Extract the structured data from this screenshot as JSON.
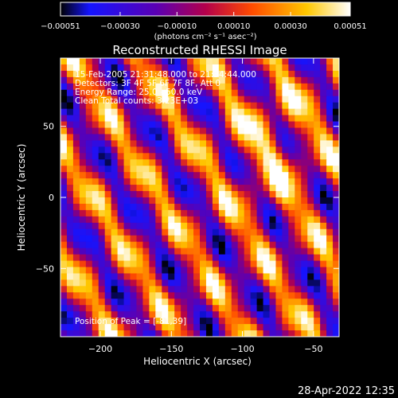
{
  "chart_data": {
    "type": "heatmap",
    "title": "Reconstructed RHESSI Image",
    "xlabel": "Heliocentric X (arcsec)",
    "ylabel": "Heliocentric Y (arcsec)",
    "xlim": [
      -228,
      -32
    ],
    "ylim": [
      -98,
      98
    ],
    "xticks": [
      -200,
      -150,
      -100,
      -50
    ],
    "yticks": [
      50,
      0,
      -50
    ],
    "xtick_labels": [
      "−200",
      "−150",
      "−100",
      "−50"
    ],
    "ytick_labels": [
      "50",
      "0",
      "−50"
    ],
    "colorbar": {
      "min": -0.00051,
      "max": 0.00051,
      "ticks": [
        -0.00051,
        -0.0003,
        -0.0001,
        0.0001,
        0.0003,
        0.00051
      ],
      "tick_labels": [
        "−0.00051",
        "−0.00030",
        "−0.00010",
        "0.00010",
        "0.00030",
        "0.00051"
      ],
      "unit_label": "(photons cm⁻² s⁻¹ asec⁻²)",
      "colors": [
        "#000000",
        "#1414ff",
        "#5a00b4",
        "#b4004b",
        "#ff4b00",
        "#ffc800",
        "#ffffff"
      ]
    },
    "annotations": [
      "15-Feb-2005 21:31:48.000 to 21:34:44.000",
      "Detectors: 3F 4F 5F 6F 7F 8F, Att 0",
      "Energy Range: 25.0 - 50.0 keV",
      "Clean    Total counts: 3.23E+03"
    ],
    "peak_label": "Position of Peak = [-81,39]",
    "peak": [
      -81,
      39
    ]
  },
  "footer": {
    "timestamp": "28-Apr-2022 12:35"
  }
}
